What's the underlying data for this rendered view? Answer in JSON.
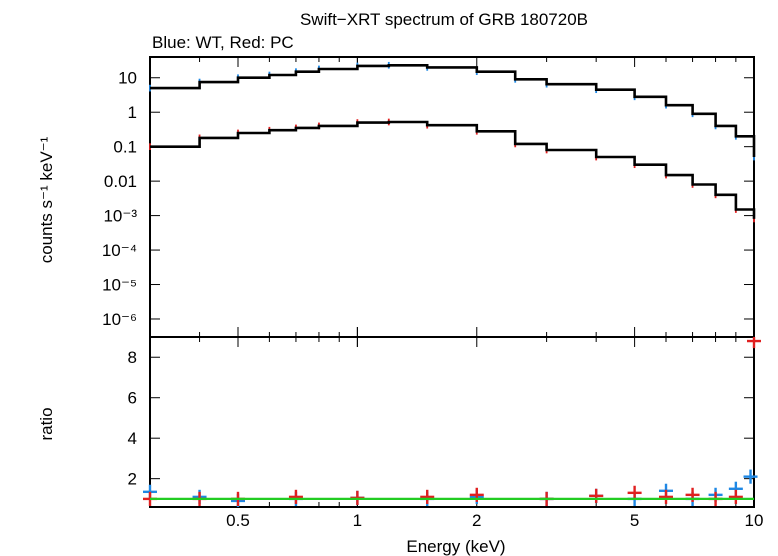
{
  "chart_data": [
    {
      "type": "line",
      "title": "Swift−XRT spectrum of GRB 180720B",
      "subtitle": "Blue: WT, Red: PC",
      "xlabel": "Energy (keV)",
      "ylabel": "counts s⁻¹ keV⁻¹",
      "x_scale": "log",
      "y_scale": "log",
      "xlim": [
        0.3,
        10
      ],
      "ylim": [
        3e-07,
        40
      ],
      "x_ticks": [
        {
          "value": 0.5,
          "label": "0.5"
        },
        {
          "value": 1,
          "label": "1"
        },
        {
          "value": 2,
          "label": "2"
        },
        {
          "value": 5,
          "label": "5"
        },
        {
          "value": 10,
          "label": "10"
        }
      ],
      "y_ticks": [
        {
          "value": 10,
          "label": "10"
        },
        {
          "value": 1,
          "label": "1"
        },
        {
          "value": 0.1,
          "label": "0.1"
        },
        {
          "value": 0.01,
          "label": "0.01"
        },
        {
          "value": 0.001,
          "label": "10⁻³"
        },
        {
          "value": 0.0001,
          "label": "10⁻⁴"
        },
        {
          "value": 1e-05,
          "label": "10⁻⁵"
        },
        {
          "value": 1e-06,
          "label": "10⁻⁶"
        }
      ],
      "series": [
        {
          "color": "#1e88e5",
          "x": [
            0.3,
            0.4,
            0.5,
            0.6,
            0.7,
            0.8,
            1.0,
            1.2,
            1.5,
            2.0,
            2.5,
            3.0,
            4.0,
            5.0,
            6.0,
            7.0,
            8.0,
            9.0,
            10.0
          ],
          "y": [
            5.0,
            7.5,
            10,
            12,
            15,
            18,
            22,
            23,
            20,
            15,
            9.0,
            6.5,
            4.5,
            2.8,
            1.6,
            0.9,
            0.4,
            0.2,
            0.05
          ]
        },
        {
          "color": "#1e88e5",
          "style": "model",
          "x": [
            0.3,
            0.4,
            0.5,
            0.6,
            0.7,
            0.8,
            1.0,
            1.2,
            1.5,
            2.0,
            2.5,
            3.0,
            4.0,
            5.0,
            6.0,
            7.0,
            8.0,
            9.0,
            10.0
          ],
          "y": [
            5.0,
            7.5,
            10,
            12,
            15,
            18,
            22,
            23,
            20,
            15,
            9.0,
            6.5,
            4.5,
            2.8,
            1.6,
            0.9,
            0.4,
            0.2,
            0.05
          ]
        },
        {
          "color": "#e02020",
          "x": [
            0.3,
            0.4,
            0.5,
            0.6,
            0.7,
            0.8,
            1.0,
            1.2,
            1.5,
            2.0,
            2.5,
            3.0,
            4.0,
            5.0,
            6.0,
            7.0,
            8.0,
            9.0,
            10.0
          ],
          "y": [
            0.1,
            0.18,
            0.25,
            0.3,
            0.35,
            0.4,
            0.5,
            0.52,
            0.42,
            0.28,
            0.12,
            0.08,
            0.05,
            0.03,
            0.015,
            0.008,
            0.004,
            0.0015,
            0.0008
          ]
        },
        {
          "color": "#e02020",
          "style": "model",
          "x": [
            0.3,
            0.4,
            0.5,
            0.6,
            0.7,
            0.8,
            1.0,
            1.2,
            1.5,
            2.0,
            2.5,
            3.0,
            4.0,
            5.0,
            6.0,
            7.0,
            8.0,
            9.0,
            10.0
          ],
          "y": [
            0.1,
            0.18,
            0.25,
            0.3,
            0.35,
            0.4,
            0.5,
            0.52,
            0.42,
            0.28,
            0.12,
            0.08,
            0.05,
            0.03,
            0.015,
            0.008,
            0.004,
            0.0015,
            0.0008
          ]
        }
      ],
      "model_color": "#000000"
    },
    {
      "type": "scatter",
      "xlabel": "Energy (keV)",
      "ylabel": "ratio",
      "x_scale": "log",
      "y_scale": "linear",
      "xlim": [
        0.3,
        10
      ],
      "ylim": [
        0.6,
        9.0
      ],
      "x_ticks": [
        {
          "value": 0.5,
          "label": "0.5"
        },
        {
          "value": 1,
          "label": "1"
        },
        {
          "value": 2,
          "label": "2"
        },
        {
          "value": 5,
          "label": "5"
        },
        {
          "value": 10,
          "label": "10"
        }
      ],
      "y_ticks": [
        {
          "value": 2,
          "label": "2"
        },
        {
          "value": 4,
          "label": "4"
        },
        {
          "value": 6,
          "label": "6"
        },
        {
          "value": 8,
          "label": "8"
        }
      ],
      "reference_line": {
        "y": 1.0,
        "color": "#22cc22"
      },
      "series": [
        {
          "color": "#1e88e5",
          "x": [
            0.3,
            0.4,
            0.5,
            0.7,
            1.0,
            1.5,
            2.0,
            3.0,
            4.0,
            5.0,
            6.0,
            7.0,
            8.0,
            9.0,
            9.8
          ],
          "y": [
            1.35,
            1.1,
            0.9,
            1.0,
            1.05,
            1.0,
            1.1,
            1.0,
            1.15,
            1.0,
            1.4,
            1.0,
            1.2,
            1.5,
            2.1
          ]
        },
        {
          "color": "#e02020",
          "x": [
            0.3,
            0.4,
            0.5,
            0.7,
            1.0,
            1.5,
            2.0,
            3.0,
            4.0,
            5.0,
            6.0,
            7.0,
            8.0,
            9.0,
            10.0
          ],
          "y": [
            1.0,
            1.0,
            1.0,
            1.1,
            1.05,
            1.1,
            1.2,
            1.0,
            1.15,
            1.3,
            1.1,
            1.2,
            1.0,
            1.1,
            8.8
          ]
        }
      ]
    }
  ]
}
